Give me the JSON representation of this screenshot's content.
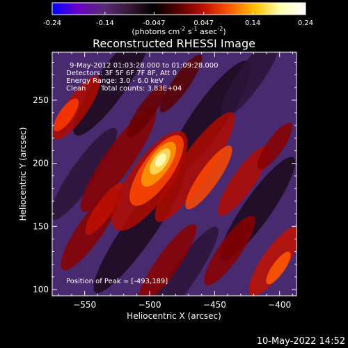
{
  "footer": {
    "timestamp": "10-May-2022 14:52"
  },
  "colorbar": {
    "ticks": [
      "-0.24",
      "-0.14",
      "-0.047",
      "0.047",
      "0.14",
      "0.24"
    ],
    "unit_label": "(photons cm",
    "unit_exp1": "-2",
    "unit_mid1": " s",
    "unit_exp2": "-1",
    "unit_mid2": " asec",
    "unit_exp3": "-2",
    "unit_end": ")",
    "range": [
      -0.24,
      0.24
    ],
    "colors": [
      "#0000ff",
      "#6a00c8",
      "#5a2a7a",
      "#3a1a3a",
      "#000000",
      "#5a0000",
      "#c01000",
      "#ff5a00",
      "#ffc000",
      "#ffffb0",
      "#ffffff"
    ]
  },
  "chart_data": {
    "type": "heatmap",
    "title": "Reconstructed RHESSI Image",
    "xlabel": "Heliocentric X (arcsec)",
    "ylabel": "Heliocentric Y (arcsec)",
    "xlim": [
      -575,
      -387
    ],
    "ylim": [
      95,
      288
    ],
    "x_ticks": [
      -550,
      -500,
      -450,
      -400
    ],
    "y_ticks": [
      100,
      150,
      200,
      250
    ],
    "value_range": [
      -0.24,
      0.24
    ],
    "peak": {
      "x": -493,
      "y": 189
    },
    "annotations": {
      "time_range": "9-May-2012 01:03:28.000 to 01:09:28.000",
      "detectors": "Detectors: 3F 5F 6F 7F 8F, Att 0",
      "energy": "Energy Range: 3.0 - 6.0 keV",
      "method": "Clean",
      "counts": "Total counts: 3.83E+04",
      "peak_text": "Position of Peak = [-493,189]"
    }
  }
}
